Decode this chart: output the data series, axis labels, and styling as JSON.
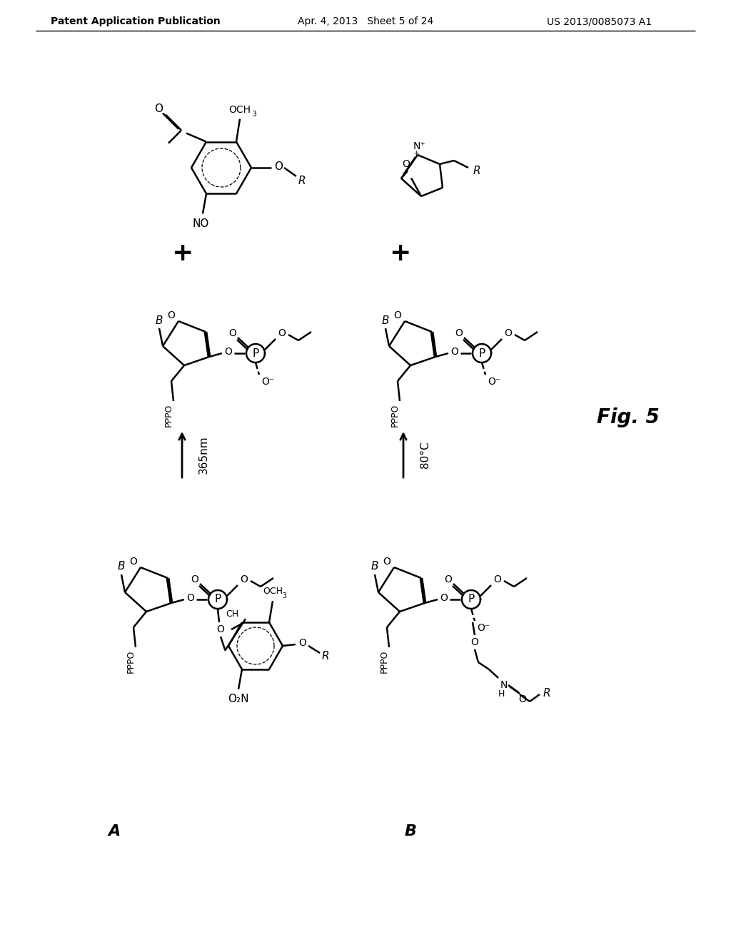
{
  "header_left": "Patent Application Publication",
  "header_center": "Apr. 4, 2013   Sheet 5 of 24",
  "header_right": "US 2013/0085073 A1",
  "figure_label": "Fig. 5",
  "label_A": "A",
  "label_B": "B",
  "background_color": "#ffffff",
  "line_color": "#000000",
  "line_width": 1.8
}
